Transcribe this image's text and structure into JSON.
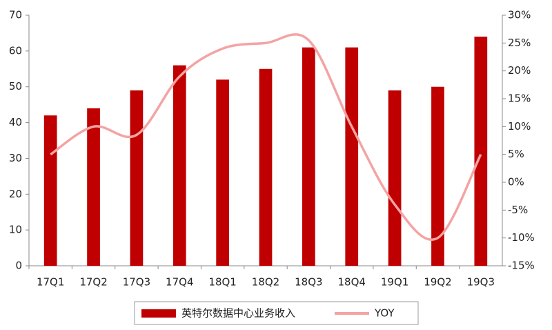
{
  "chart_data": {
    "type": "bar",
    "categories": [
      "17Q1",
      "17Q2",
      "17Q3",
      "17Q4",
      "18Q1",
      "18Q2",
      "18Q3",
      "18Q4",
      "19Q1",
      "19Q2",
      "19Q3"
    ],
    "series": [
      {
        "name": "英特尔数据中心业务收入",
        "color": "#c00000",
        "values": [
          42,
          44,
          49,
          56,
          52,
          55,
          61,
          61,
          49,
          50,
          64
        ]
      },
      {
        "name": "YOY",
        "color": "#f4a3a3",
        "type": "line",
        "axis": "y2",
        "values": [
          5,
          10,
          8.5,
          19,
          24,
          25,
          25.5,
          10,
          -4,
          -10,
          5
        ]
      }
    ],
    "ylim": [
      0,
      70
    ],
    "yticks": [
      0,
      10,
      20,
      30,
      40,
      50,
      60,
      70
    ],
    "y2lim": [
      -15,
      30
    ],
    "y2ticks": [
      {
        "value": -15,
        "label": "-15%"
      },
      {
        "value": -10,
        "label": "-10%"
      },
      {
        "value": -5,
        "label": "-5%"
      },
      {
        "value": 0,
        "label": "0%"
      },
      {
        "value": 5,
        "label": "5%"
      },
      {
        "value": 10,
        "label": "10%"
      },
      {
        "value": 15,
        "label": "15%"
      },
      {
        "value": 20,
        "label": "20%"
      },
      {
        "value": 25,
        "label": "25%"
      },
      {
        "value": 30,
        "label": "30%"
      }
    ],
    "legend": "bottom"
  }
}
